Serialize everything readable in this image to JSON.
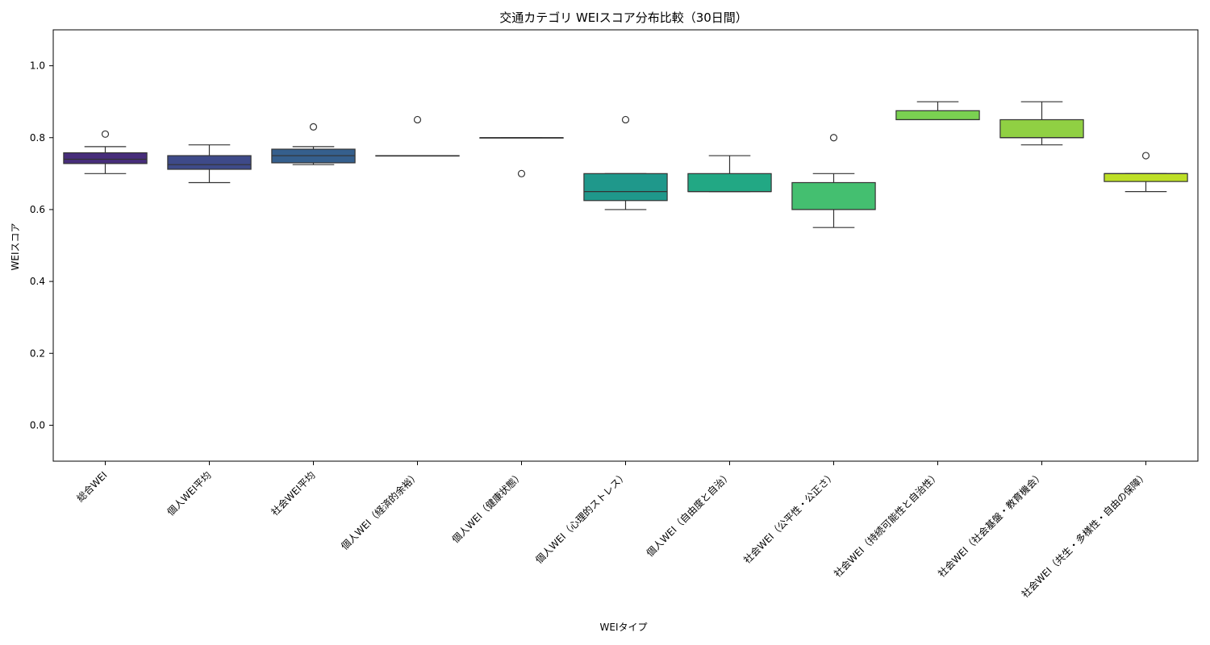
{
  "chart_data": {
    "type": "box",
    "title": "交通カテゴリ WEIスコア分布比較（30日間）",
    "xlabel": "WEIタイプ",
    "ylabel": "WEIスコア",
    "ylim": [
      -0.1,
      1.1
    ],
    "yticks": [
      "0.0",
      "0.2",
      "0.4",
      "0.6",
      "0.8",
      "1.0"
    ],
    "grid": false,
    "legend": "none",
    "categories": [
      "総合WEI",
      "個人WEI平均",
      "社会WEI平均",
      "個人WEI（経済的余裕）",
      "個人WEI（健康状態）",
      "個人WEI（心理的ストレス）",
      "個人WEI（自由度と自治）",
      "社会WEI（公平性・公正さ）",
      "社会WEI（持続可能性と自治性）",
      "社会WEI（社会基盤・教育機会）",
      "社会WEI（共生・多様性・自由の保障）"
    ],
    "boxes": [
      {
        "whisker_low": 0.7,
        "q1": 0.728,
        "median": 0.74,
        "q3": 0.758,
        "whisker_high": 0.775,
        "outliers": [
          0.81
        ],
        "color": "#472d7b"
      },
      {
        "whisker_low": 0.675,
        "q1": 0.712,
        "median": 0.725,
        "q3": 0.75,
        "whisker_high": 0.78,
        "outliers": [],
        "color": "#3e4a89"
      },
      {
        "whisker_low": 0.725,
        "q1": 0.73,
        "median": 0.75,
        "q3": 0.768,
        "whisker_high": 0.775,
        "outliers": [
          0.83
        ],
        "color": "#355f8d"
      },
      {
        "whisker_low": 0.75,
        "q1": 0.75,
        "median": 0.75,
        "q3": 0.75,
        "whisker_high": 0.75,
        "outliers": [
          0.85
        ],
        "color": "#2b758e"
      },
      {
        "whisker_low": 0.8,
        "q1": 0.8,
        "median": 0.8,
        "q3": 0.8,
        "whisker_high": 0.8,
        "outliers": [
          0.7
        ],
        "color": "#25858e"
      },
      {
        "whisker_low": 0.6,
        "q1": 0.625,
        "median": 0.65,
        "q3": 0.7,
        "whisker_high": 0.7,
        "outliers": [
          0.85
        ],
        "color": "#1f988b"
      },
      {
        "whisker_low": 0.65,
        "q1": 0.65,
        "median": 0.65,
        "q3": 0.7,
        "whisker_high": 0.75,
        "outliers": [],
        "color": "#22a884"
      },
      {
        "whisker_low": 0.55,
        "q1": 0.6,
        "median": 0.6,
        "q3": 0.675,
        "whisker_high": 0.7,
        "outliers": [
          0.8
        ],
        "color": "#44bf70"
      },
      {
        "whisker_low": 0.85,
        "q1": 0.85,
        "median": 0.85,
        "q3": 0.875,
        "whisker_high": 0.9,
        "outliers": [],
        "color": "#7ad151"
      },
      {
        "whisker_low": 0.78,
        "q1": 0.8,
        "median": 0.8,
        "q3": 0.85,
        "whisker_high": 0.9,
        "outliers": [],
        "color": "#90d043"
      },
      {
        "whisker_low": 0.65,
        "q1": 0.678,
        "median": 0.7,
        "q3": 0.7,
        "whisker_high": 0.7,
        "outliers": [
          0.75
        ],
        "color": "#bddf26"
      }
    ]
  }
}
